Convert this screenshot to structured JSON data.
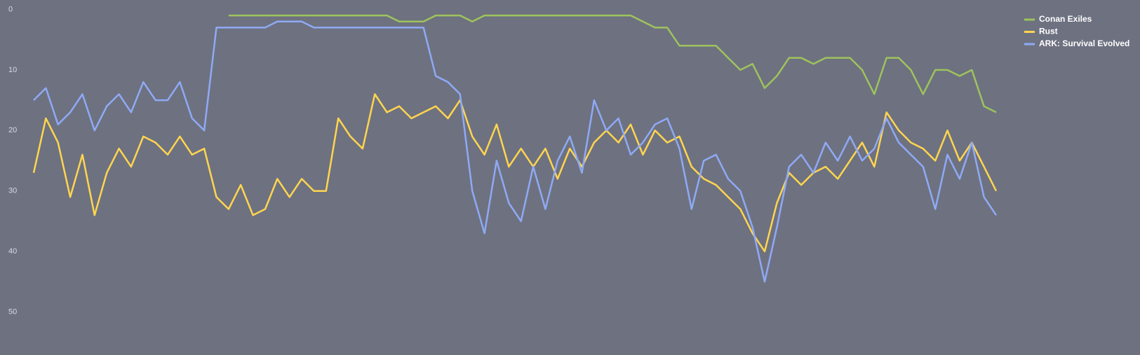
{
  "chart_data": {
    "type": "line",
    "y_inverted": true,
    "ylim": [
      0,
      57
    ],
    "yticks": [
      0,
      10,
      20,
      30,
      40,
      50
    ],
    "grid": false,
    "legend": "top-right",
    "series": [
      {
        "name": "Conan Exiles",
        "color": "#9dc35c",
        "values": [
          null,
          null,
          null,
          null,
          null,
          null,
          null,
          null,
          null,
          null,
          null,
          null,
          null,
          null,
          null,
          null,
          1,
          1,
          1,
          1,
          1,
          1,
          1,
          1,
          1,
          1,
          1,
          1,
          1,
          1,
          2,
          2,
          2,
          1,
          1,
          1,
          2,
          1,
          1,
          1,
          1,
          1,
          1,
          1,
          1,
          1,
          1,
          1,
          1,
          1,
          2,
          3,
          3,
          6,
          6,
          6,
          6,
          8,
          10,
          9,
          13,
          11,
          8,
          8,
          9,
          8,
          8,
          8,
          10,
          14,
          8,
          8,
          10,
          14,
          10,
          10,
          11,
          10,
          16,
          17
        ]
      },
      {
        "name": "Rust",
        "color": "#ffd54f",
        "values": [
          27,
          18,
          22,
          31,
          24,
          34,
          27,
          23,
          26,
          21,
          22,
          24,
          21,
          24,
          23,
          31,
          33,
          29,
          34,
          33,
          28,
          31,
          28,
          30,
          30,
          18,
          21,
          23,
          14,
          17,
          16,
          18,
          17,
          16,
          18,
          15,
          21,
          24,
          19,
          26,
          23,
          26,
          23,
          28,
          23,
          26,
          22,
          20,
          22,
          19,
          24,
          20,
          22,
          21,
          26,
          28,
          29,
          31,
          33,
          37,
          40,
          32,
          27,
          29,
          27,
          26,
          28,
          25,
          22,
          26,
          17,
          20,
          22,
          23,
          25,
          20,
          25,
          22,
          26,
          30
        ]
      },
      {
        "name": "ARK: Survival Evolved",
        "color": "#8eaaf5",
        "values": [
          15,
          13,
          19,
          17,
          14,
          20,
          16,
          14,
          17,
          12,
          15,
          15,
          12,
          18,
          20,
          3,
          3,
          3,
          3,
          3,
          2,
          2,
          2,
          3,
          3,
          3,
          3,
          3,
          3,
          3,
          3,
          3,
          3,
          11,
          12,
          14,
          30,
          37,
          25,
          32,
          35,
          26,
          33,
          25,
          21,
          27,
          15,
          20,
          18,
          24,
          22,
          19,
          18,
          23,
          33,
          25,
          24,
          28,
          30,
          36,
          45,
          36,
          26,
          24,
          27,
          22,
          25,
          21,
          25,
          23,
          18,
          22,
          24,
          26,
          33,
          24,
          28,
          22,
          31,
          34
        ]
      }
    ]
  }
}
